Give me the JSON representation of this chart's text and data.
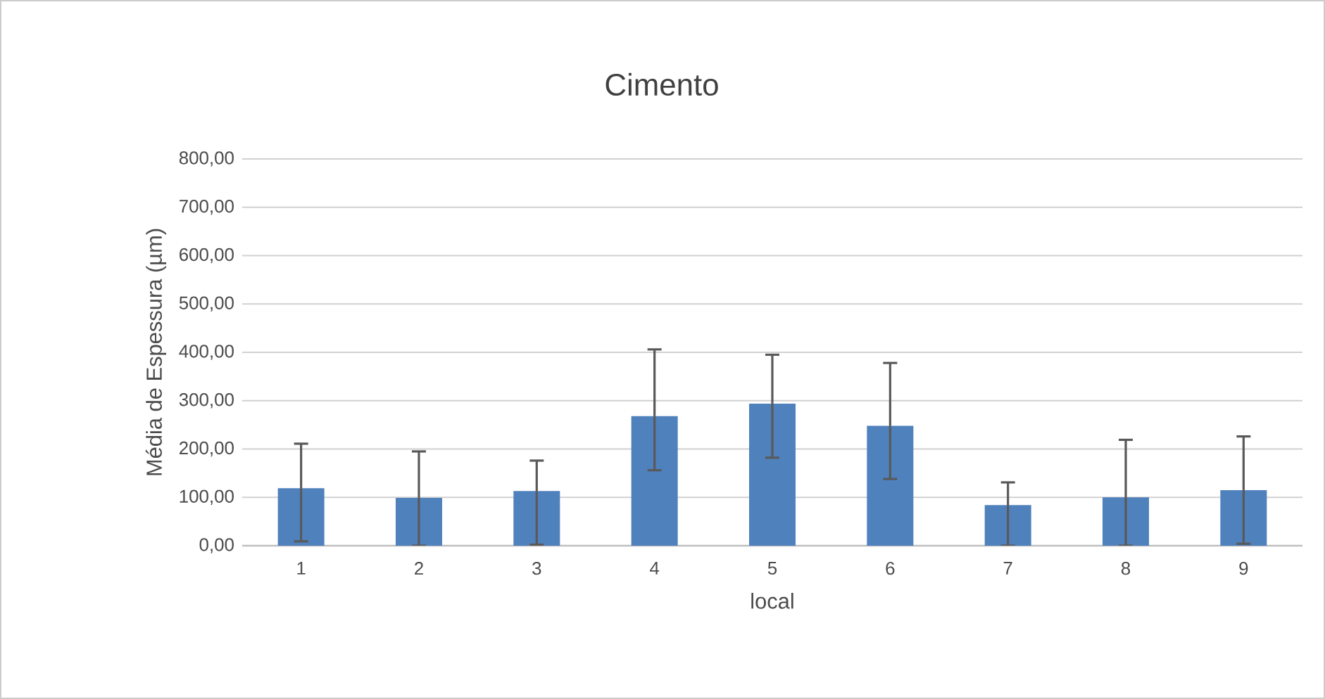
{
  "chart_data": {
    "type": "bar",
    "title": "Cimento",
    "xlabel": "local",
    "ylabel": "Média de Espessura (µm)",
    "categories": [
      "1",
      "2",
      "3",
      "4",
      "5",
      "6",
      "7",
      "8",
      "9"
    ],
    "values": [
      119,
      99,
      113,
      268,
      294,
      248,
      84,
      100,
      115
    ],
    "errors": [
      [
        9,
        211
      ],
      [
        0,
        195
      ],
      [
        2,
        176
      ],
      [
        156,
        406
      ],
      [
        182,
        395
      ],
      [
        138,
        378
      ],
      [
        0,
        131
      ],
      [
        0,
        219
      ],
      [
        4,
        226
      ]
    ],
    "color": "#4f81bd",
    "ylim": [
      0,
      800
    ],
    "yticks": [
      {
        "value": 0,
        "label": "0,00"
      },
      {
        "value": 100,
        "label": "100,00"
      },
      {
        "value": 200,
        "label": "200,00"
      },
      {
        "value": 300,
        "label": "300,00"
      },
      {
        "value": 400,
        "label": "400,00"
      },
      {
        "value": 500,
        "label": "500,00"
      },
      {
        "value": 600,
        "label": "600,00"
      },
      {
        "value": 700,
        "label": "700,00"
      },
      {
        "value": 800,
        "label": "800,00"
      }
    ],
    "grid": "y"
  }
}
